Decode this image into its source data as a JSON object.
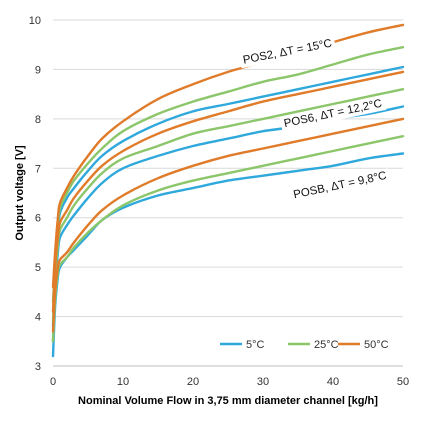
{
  "chart_data": {
    "type": "line",
    "xlabel": "Nominal Volume Flow in 3,75 mm diameter channel [kg/h]",
    "ylabel": "Output voltage [V]",
    "xlim": [
      0,
      50
    ],
    "ylim": [
      3,
      10
    ],
    "x_ticks": [
      "0",
      "10",
      "20",
      "30",
      "40",
      "50"
    ],
    "y_ticks": [
      "3",
      "4",
      "5",
      "6",
      "7",
      "8",
      "9",
      "10"
    ],
    "grid": "horizontal",
    "legend_position": "bottom-right",
    "legend": [
      {
        "label": "5°C",
        "color": "#2fa8dc"
      },
      {
        "label": "25°C",
        "color": "#8cc66a"
      },
      {
        "label": "50°C",
        "color": "#e07b2a"
      }
    ],
    "annotations": [
      {
        "text": "POS2, ΔT = 15°C",
        "x": 33.5,
        "y": 9.35
      },
      {
        "text": "POS6, ΔT = 12,2°C",
        "x": 40,
        "y": 8.1
      },
      {
        "text": "POSB, ΔT = 9,8°C",
        "x": 41,
        "y": 6.65
      }
    ],
    "series": [
      {
        "group": "POS2",
        "name": "5°C",
        "color": "#2fa8dc",
        "x": [
          0,
          0.3,
          0.7,
          1,
          2,
          3,
          5,
          7,
          10,
          15,
          20,
          25,
          30,
          35,
          40,
          45,
          50
        ],
        "y": [
          3.8,
          4.9,
          5.7,
          6.1,
          6.4,
          6.6,
          6.95,
          7.25,
          7.55,
          7.9,
          8.15,
          8.3,
          8.45,
          8.6,
          8.75,
          8.9,
          9.05
        ]
      },
      {
        "group": "POS2",
        "name": "25°C",
        "color": "#8cc66a",
        "x": [
          0,
          0.3,
          0.7,
          1,
          2,
          3,
          5,
          7,
          10,
          15,
          20,
          25,
          30,
          35,
          40,
          45,
          50
        ],
        "y": [
          4.3,
          5.1,
          5.85,
          6.2,
          6.5,
          6.75,
          7.1,
          7.4,
          7.75,
          8.1,
          8.35,
          8.55,
          8.75,
          8.9,
          9.1,
          9.3,
          9.45
        ]
      },
      {
        "group": "POS2",
        "name": "50°C",
        "color": "#e07b2a",
        "x": [
          0,
          0.3,
          0.7,
          1,
          2,
          3,
          5,
          7,
          10,
          15,
          20,
          25,
          30,
          35,
          40,
          45,
          50
        ],
        "y": [
          4.6,
          5.3,
          6.0,
          6.3,
          6.6,
          6.85,
          7.25,
          7.6,
          7.95,
          8.4,
          8.7,
          8.95,
          9.15,
          9.35,
          9.55,
          9.75,
          9.9
        ]
      },
      {
        "group": "POS6",
        "name": "5°C",
        "color": "#2fa8dc",
        "x": [
          0,
          0.3,
          0.7,
          1,
          2,
          3,
          5,
          7,
          10,
          15,
          20,
          25,
          30,
          35,
          40,
          45,
          50
        ],
        "y": [
          3.5,
          4.6,
          5.3,
          5.6,
          5.85,
          6.05,
          6.4,
          6.7,
          7.0,
          7.25,
          7.45,
          7.6,
          7.75,
          7.85,
          8.0,
          8.1,
          8.25
        ]
      },
      {
        "group": "POS6",
        "name": "25°C",
        "color": "#8cc66a",
        "x": [
          0,
          0.3,
          0.7,
          1,
          2,
          3,
          5,
          7,
          10,
          15,
          20,
          25,
          30,
          35,
          40,
          45,
          50
        ],
        "y": [
          3.9,
          4.8,
          5.45,
          5.75,
          6.0,
          6.25,
          6.6,
          6.9,
          7.2,
          7.45,
          7.7,
          7.85,
          8.0,
          8.15,
          8.3,
          8.45,
          8.6
        ]
      },
      {
        "group": "POS6",
        "name": "50°C",
        "color": "#e07b2a",
        "x": [
          0,
          0.3,
          0.7,
          1,
          2,
          3,
          5,
          7,
          10,
          15,
          20,
          25,
          30,
          35,
          40,
          45,
          50
        ],
        "y": [
          4.1,
          5.0,
          5.6,
          5.9,
          6.15,
          6.4,
          6.75,
          7.05,
          7.35,
          7.7,
          7.95,
          8.15,
          8.35,
          8.5,
          8.65,
          8.8,
          8.95
        ]
      },
      {
        "group": "POSB",
        "name": "5°C",
        "color": "#2fa8dc",
        "x": [
          0,
          0.3,
          0.7,
          1,
          2,
          3,
          5,
          7,
          10,
          15,
          20,
          25,
          30,
          35,
          40,
          45,
          50
        ],
        "y": [
          3.2,
          4.2,
          4.8,
          5.0,
          5.2,
          5.35,
          5.65,
          5.95,
          6.2,
          6.45,
          6.6,
          6.75,
          6.85,
          6.95,
          7.05,
          7.2,
          7.3
        ]
      },
      {
        "group": "POSB",
        "name": "25°C",
        "color": "#8cc66a",
        "x": [
          0,
          0.3,
          0.7,
          1,
          2,
          3,
          5,
          7,
          10,
          15,
          20,
          25,
          30,
          35,
          40,
          45,
          50
        ],
        "y": [
          3.5,
          4.35,
          4.9,
          5.05,
          5.2,
          5.4,
          5.7,
          5.95,
          6.25,
          6.55,
          6.75,
          6.9,
          7.05,
          7.2,
          7.35,
          7.5,
          7.65
        ]
      },
      {
        "group": "POSB",
        "name": "50°C",
        "color": "#e07b2a",
        "x": [
          0,
          0.3,
          0.7,
          1,
          2,
          3,
          5,
          7,
          10,
          15,
          20,
          25,
          30,
          35,
          40,
          45,
          50
        ],
        "y": [
          3.7,
          4.5,
          5.0,
          5.15,
          5.3,
          5.5,
          5.85,
          6.15,
          6.45,
          6.8,
          7.05,
          7.25,
          7.4,
          7.55,
          7.7,
          7.85,
          8.0
        ]
      }
    ]
  }
}
